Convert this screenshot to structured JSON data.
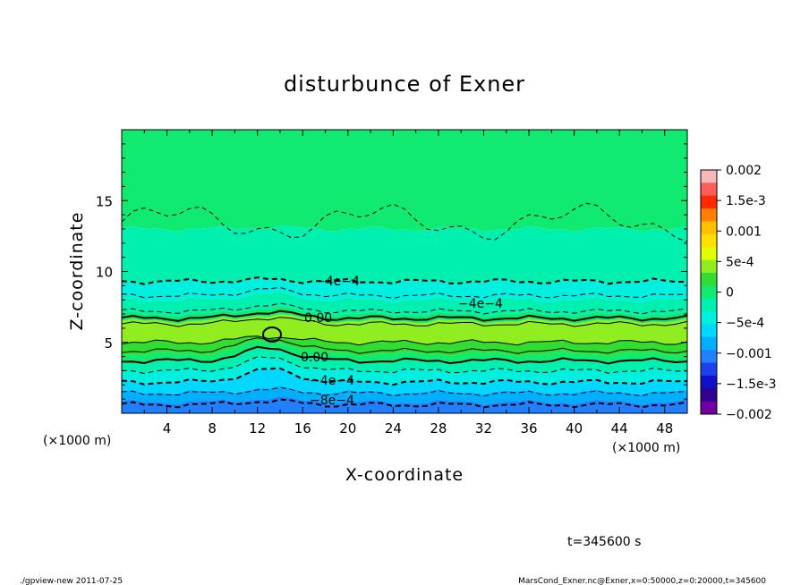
{
  "chart_data": {
    "type": "heatmap",
    "title": "disturbunce of Exner",
    "xlabel": "X-coordinate",
    "ylabel": "Z-coordinate",
    "x_unit": "(×1000 m)",
    "y_unit": "(×1000 m)",
    "xlim": [
      0,
      50
    ],
    "ylim": [
      0,
      20
    ],
    "x_ticks": [
      "4",
      "8",
      "12",
      "16",
      "20",
      "24",
      "28",
      "32",
      "36",
      "40",
      "44",
      "48"
    ],
    "y_ticks": [
      "5",
      "10",
      "15"
    ],
    "colorbar": {
      "labels": [
        "0.002",
        "1.5e-3",
        "0.001",
        "5e-4",
        "0",
        "−5e-4",
        "−0.001",
        "−1.5e-3",
        "−0.002"
      ],
      "values": [
        0.002,
        0.0015,
        0.001,
        0.0005,
        0,
        -0.0005,
        -0.001,
        -0.0015,
        -0.002
      ],
      "colors": [
        "#f8b8b8",
        "#ff5c5c",
        "#ff2a00",
        "#ff8000",
        "#ffc000",
        "#ffe000",
        "#e0ff00",
        "#90ee20",
        "#30dd30",
        "#10ea70",
        "#00f0b0",
        "#00f0e0",
        "#00d8ff",
        "#00b0ff",
        "#2080ff",
        "#2040f0",
        "#1010c8",
        "#300090",
        "#7000a0"
      ]
    },
    "contour_labels": [
      "−4e−4",
      "−4e−4",
      "0.00",
      "0.00",
      "−4e−4",
      "−8e−4"
    ],
    "bands": [
      {
        "z_bottom": 0.0,
        "z_top": 0.8,
        "value": -0.0011
      },
      {
        "z_bottom": 0.8,
        "z_top": 1.5,
        "value": -0.0009
      },
      {
        "z_bottom": 1.5,
        "z_top": 2.2,
        "value": -0.0007
      },
      {
        "z_bottom": 2.2,
        "z_top": 3.0,
        "value": -0.0005
      },
      {
        "z_bottom": 3.0,
        "z_top": 3.6,
        "value": -0.0002
      },
      {
        "z_bottom": 3.6,
        "z_top": 4.2,
        "value": 0.0001
      },
      {
        "z_bottom": 4.2,
        "z_top": 5.0,
        "value": 0.0003
      },
      {
        "z_bottom": 5.0,
        "z_top": 6.5,
        "value": 0.0004
      },
      {
        "z_bottom": 6.5,
        "z_top": 7.0,
        "value": 0.0001
      },
      {
        "z_bottom": 7.0,
        "z_top": 8.0,
        "value": -0.0002
      },
      {
        "z_bottom": 8.0,
        "z_top": 9.3,
        "value": -0.0004
      },
      {
        "z_bottom": 9.3,
        "z_top": 13.0,
        "value": -0.0002
      },
      {
        "z_bottom": 13.0,
        "z_top": 20.0,
        "value": 5e-05
      }
    ],
    "contour_lines": [
      {
        "z": 9.3,
        "style": "dashed-bold"
      },
      {
        "z": 8.3,
        "style": "dashed"
      },
      {
        "z": 7.2,
        "style": "dashed"
      },
      {
        "z": 6.7,
        "style": "solid-bold"
      },
      {
        "z": 6.3,
        "style": "solid"
      },
      {
        "z": 5.0,
        "style": "solid"
      },
      {
        "z": 4.4,
        "style": "solid"
      },
      {
        "z": 3.7,
        "style": "solid-bold"
      },
      {
        "z": 3.0,
        "style": "dashed"
      },
      {
        "z": 2.2,
        "style": "dashed-bold"
      },
      {
        "z": 1.4,
        "style": "dashed"
      },
      {
        "z": 0.6,
        "style": "dashed-bold"
      }
    ]
  },
  "footer": {
    "time": "t=345600 s",
    "left": "./gpview-new   2011-07-25",
    "right": "MarsCond_Exner.nc@Exner,x=0:50000,z=0:20000,t=345600"
  }
}
